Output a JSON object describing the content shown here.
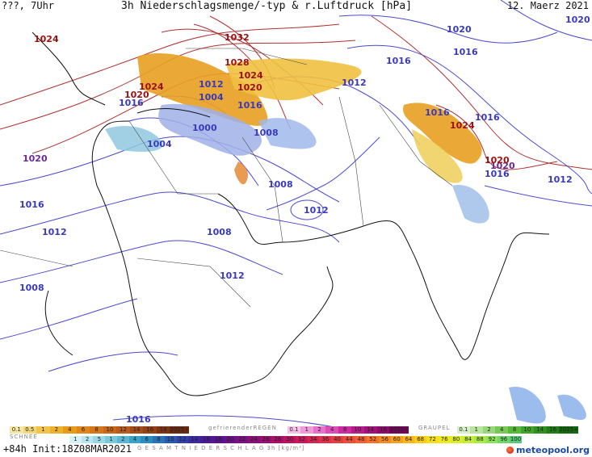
{
  "header": {
    "left": "???, 7Uhr",
    "title": "3h Niederschlagsmenge/-typ & r.Luftdruck [hPa]",
    "date": "12. Maerz 2021"
  },
  "isobar_labels": [
    {
      "text": "1024",
      "cls": "high"
    },
    {
      "text": "1032",
      "cls": "high"
    },
    {
      "text": "1028",
      "cls": "high"
    },
    {
      "text": "1024",
      "cls": "high"
    },
    {
      "text": "1024",
      "cls": "high"
    },
    {
      "text": "1020",
      "cls": "high"
    },
    {
      "text": "1016",
      "cls": "low"
    },
    {
      "text": "1012",
      "cls": "low"
    },
    {
      "text": "1004",
      "cls": "low"
    },
    {
      "text": "1020",
      "cls": "high"
    },
    {
      "text": "1016",
      "cls": "low"
    },
    {
      "text": "1000",
      "cls": "low"
    },
    {
      "text": "1008",
      "cls": "low"
    },
    {
      "text": "1004",
      "cls": "low"
    },
    {
      "text": "1020",
      "cls": "pur"
    },
    {
      "text": "1016",
      "cls": "low"
    },
    {
      "text": "1012",
      "cls": "low"
    },
    {
      "text": "1008",
      "cls": "low"
    },
    {
      "text": "1008",
      "cls": "low"
    },
    {
      "text": "1012",
      "cls": "low"
    },
    {
      "text": "1012",
      "cls": "low"
    },
    {
      "text": "1008",
      "cls": "low"
    },
    {
      "text": "1012",
      "cls": "low"
    },
    {
      "text": "1016",
      "cls": "low"
    },
    {
      "text": "1016",
      "cls": "low"
    },
    {
      "text": "1020",
      "cls": "low"
    },
    {
      "text": "1016",
      "cls": "low"
    },
    {
      "text": "1020",
      "cls": "low"
    },
    {
      "text": "1016",
      "cls": "low"
    },
    {
      "text": "1024",
      "cls": "high"
    },
    {
      "text": "1020",
      "cls": "pur"
    },
    {
      "text": "1020",
      "cls": "high"
    },
    {
      "text": "1016",
      "cls": "low"
    },
    {
      "text": "1012",
      "cls": "low"
    },
    {
      "text": "1016",
      "cls": "low"
    }
  ],
  "legend": {
    "snow_label": "SCHNEE",
    "freezing_rain_label": "gefrierenderREGEN",
    "graupel_label": "GRAUPEL",
    "total_label": "G E S A M T N I E D E R S C H L A G   3h   [kg/m²]",
    "snow_values": [
      "0.1",
      "0.5",
      "1",
      "2",
      "4",
      "6",
      "8",
      "10",
      "12",
      "14",
      "16",
      "18",
      "2025+"
    ],
    "freezing_values": [
      "0.1",
      "1",
      "2",
      "4",
      "8",
      "10",
      "14",
      "16",
      "2025+"
    ],
    "graupel_values": [
      "0.1",
      "1",
      "2",
      "4",
      "8",
      "10",
      "14",
      "16",
      "2025+"
    ],
    "total_values": [
      "1",
      "2",
      "5",
      "1",
      "2",
      "4",
      "6",
      "8",
      "10",
      "12",
      "14",
      "16",
      "18",
      "20",
      "22",
      "24",
      "26",
      "28",
      "30",
      "32",
      "34",
      "36",
      "40",
      "44",
      "48",
      "52",
      "56",
      "60",
      "64",
      "68",
      "72",
      "76",
      "80",
      "84",
      "88",
      "92",
      "96",
      "100"
    ]
  },
  "footer": {
    "left": "+84h  Init:18Z08MAR2021",
    "logo": "meteopool.org"
  },
  "colors": {
    "snow": [
      "#f6e7a8",
      "#f3d77a",
      "#f0c44a",
      "#eeb12a",
      "#e89a1a",
      "#e0861a",
      "#d6761a",
      "#c8661a",
      "#b85a1a",
      "#a54c1a",
      "#924016",
      "#7e3414",
      "#6a2a12"
    ],
    "freezing": [
      "#f6c2e8",
      "#f09ad8",
      "#e870c8",
      "#de4ab8",
      "#cc2aa0",
      "#b81a8c",
      "#a0127a",
      "#880c68",
      "#700858"
    ],
    "graupel": [
      "#d8f0c8",
      "#b8e4a0",
      "#98d87a",
      "#78c858",
      "#58b83a",
      "#40a42a",
      "#2e901e",
      "#207c16",
      "#146810"
    ],
    "total": [
      "#d6f2f6",
      "#b8e6ee",
      "#9ad8e6",
      "#7ac8dc",
      "#5ab6d2",
      "#3aa2c8",
      "#2a8cc0",
      "#2a72b8",
      "#2a58b0",
      "#3040a8",
      "#3c2aa0",
      "#4a1a98",
      "#5a1290",
      "#6a1088",
      "#7a1080",
      "#8a1078",
      "#9a1070",
      "#aa1068",
      "#ba1460",
      "#c81a58",
      "#d42450",
      "#de3048",
      "#e63e40",
      "#ec4e38",
      "#f06030",
      "#f27428",
      "#f48a22",
      "#f6a01c",
      "#f8b618",
      "#f8cc16",
      "#f6de18",
      "#eeea1e",
      "#dcee28",
      "#c4ee36",
      "#a8ea46",
      "#8ce258",
      "#70d86a",
      "#56cc7c"
    ]
  }
}
